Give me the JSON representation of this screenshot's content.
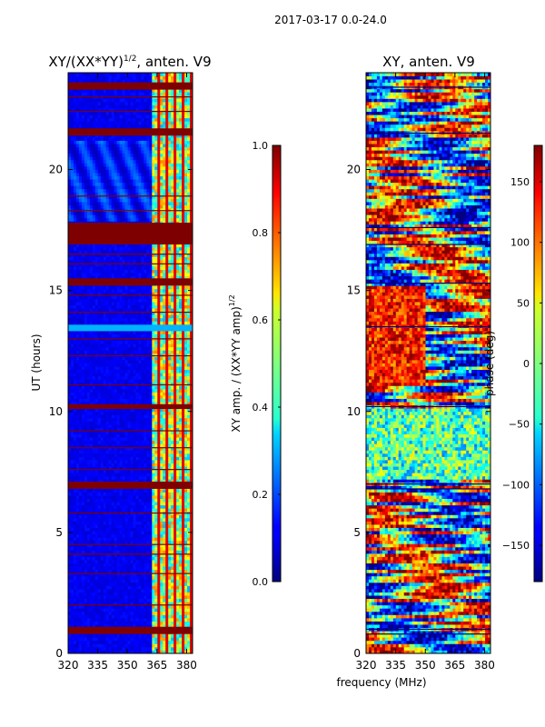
{
  "figure_title": "2017-03-17 0.0-24.0",
  "shared_xlabel": "frequency (MHz)",
  "chart_data": [
    {
      "type": "heatmap",
      "title_main": "XY/(XX*YY)",
      "title_sup": "1/2",
      "title_rest": ", anten. V9",
      "xlabel": "",
      "ylabel": "UT (hours)",
      "xlim": [
        320,
        383
      ],
      "ylim": [
        0,
        24
      ],
      "xticks": [
        320,
        335,
        350,
        365,
        380
      ],
      "yticks": [
        0,
        5,
        10,
        15,
        20
      ],
      "colorbar": {
        "label_main": "XY amp. / (XX*YY amp)",
        "label_sup": "1/2",
        "range": [
          0.0,
          1.0
        ],
        "ticks": [
          "0.0",
          "0.2",
          "0.4",
          "0.6",
          "0.8",
          "1.0"
        ],
        "tick_values": [
          0.0,
          0.2,
          0.4,
          0.6,
          0.8,
          1.0
        ]
      },
      "colormap": "jet",
      "background_value": 0.08,
      "bright_band": [
        363,
        383
      ],
      "flagged_bands_hours": [
        [
          0.8,
          1.1
        ],
        [
          6.8,
          7.1
        ],
        [
          10.1,
          10.3
        ],
        [
          15.2,
          15.5
        ],
        [
          16.9,
          17.8
        ],
        [
          21.4,
          21.7
        ],
        [
          23.3,
          23.6
        ]
      ],
      "flagged_lines_hours": [
        2.0,
        3.3,
        4.1,
        4.5,
        5.8,
        7.6,
        8.5,
        9.2,
        11.1,
        12.3,
        13.0,
        14.1,
        14.8,
        16.1,
        16.5,
        18.3,
        18.9,
        22.4,
        23.0
      ]
    },
    {
      "type": "heatmap",
      "title_main": "XY, anten. V9",
      "xlabel": "frequency (MHz)",
      "ylabel": "",
      "xlim": [
        320,
        383
      ],
      "ylim": [
        0,
        24
      ],
      "xticks": [
        320,
        335,
        350,
        365,
        380
      ],
      "yticks": [
        0,
        5,
        10,
        15,
        20
      ],
      "colorbar": {
        "label_main": "phase (deg)",
        "range": [
          -180,
          180
        ],
        "ticks": [
          "−150",
          "−100",
          "−50",
          "0",
          "50",
          "100",
          "150"
        ],
        "tick_values": [
          -150,
          -100,
          -50,
          0,
          50,
          100,
          150
        ]
      },
      "colormap": "jet",
      "flagged_lines_hours": [
        0.8,
        1.0,
        6.8,
        7.0,
        10.2,
        13.5,
        15.3,
        16.9,
        17.6,
        21.5,
        23.4
      ]
    }
  ]
}
